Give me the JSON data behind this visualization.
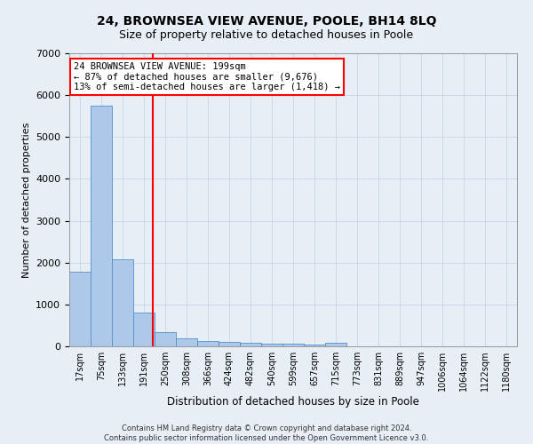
{
  "title": "24, BROWNSEA VIEW AVENUE, POOLE, BH14 8LQ",
  "subtitle": "Size of property relative to detached houses in Poole",
  "xlabel": "Distribution of detached houses by size in Poole",
  "ylabel": "Number of detached properties",
  "bin_labels": [
    "17sqm",
    "75sqm",
    "133sqm",
    "191sqm",
    "250sqm",
    "308sqm",
    "366sqm",
    "424sqm",
    "482sqm",
    "540sqm",
    "599sqm",
    "657sqm",
    "715sqm",
    "773sqm",
    "831sqm",
    "889sqm",
    "947sqm",
    "1006sqm",
    "1064sqm",
    "1122sqm",
    "1180sqm"
  ],
  "bar_heights": [
    1780,
    5750,
    2080,
    800,
    340,
    200,
    120,
    100,
    90,
    60,
    55,
    50,
    80,
    0,
    0,
    0,
    0,
    0,
    0,
    0,
    0
  ],
  "bar_color": "#adc8e8",
  "bar_edge_color": "#5090c8",
  "annotation_text": "24 BROWNSEA VIEW AVENUE: 199sqm\n← 87% of detached houses are smaller (9,676)\n13% of semi-detached houses are larger (1,418) →",
  "annotation_box_color": "white",
  "annotation_box_edge_color": "red",
  "annotation_text_fontsize": 7.5,
  "vline_color": "red",
  "vline_x": 3.42,
  "background_color": "#e8eef5",
  "grid_color": "#c8d4e8",
  "footer_line1": "Contains HM Land Registry data © Crown copyright and database right 2024.",
  "footer_line2": "Contains public sector information licensed under the Open Government Licence v3.0.",
  "ylim": [
    0,
    7000
  ],
  "title_fontsize": 10,
  "subtitle_fontsize": 9
}
